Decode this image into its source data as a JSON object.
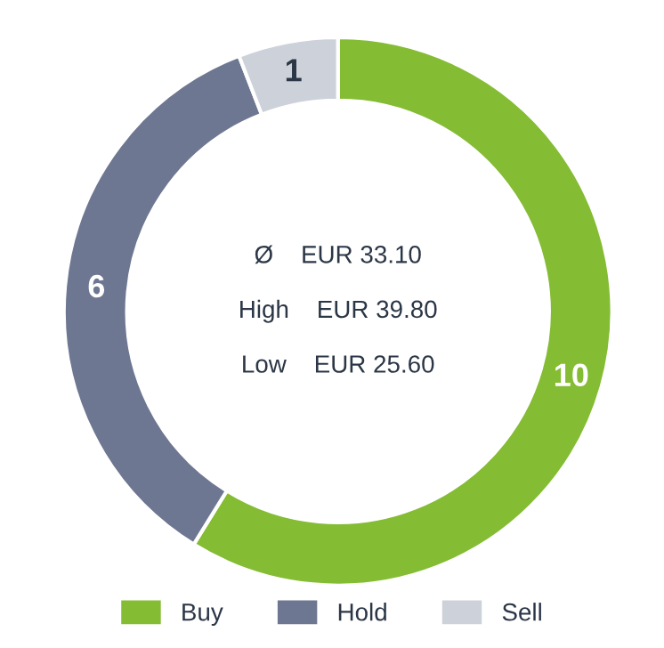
{
  "chart_data": {
    "type": "donut",
    "categories": [
      "Buy",
      "Hold",
      "Sell"
    ],
    "values": [
      10,
      6,
      1
    ],
    "colors": [
      "#84bc34",
      "#6e7791",
      "#cdd2da"
    ],
    "data_labels": true,
    "legend": "bottom",
    "annotations": [
      "Ø    EUR 33.10",
      "High    EUR 39.80",
      "Low    EUR 25.60"
    ]
  }
}
